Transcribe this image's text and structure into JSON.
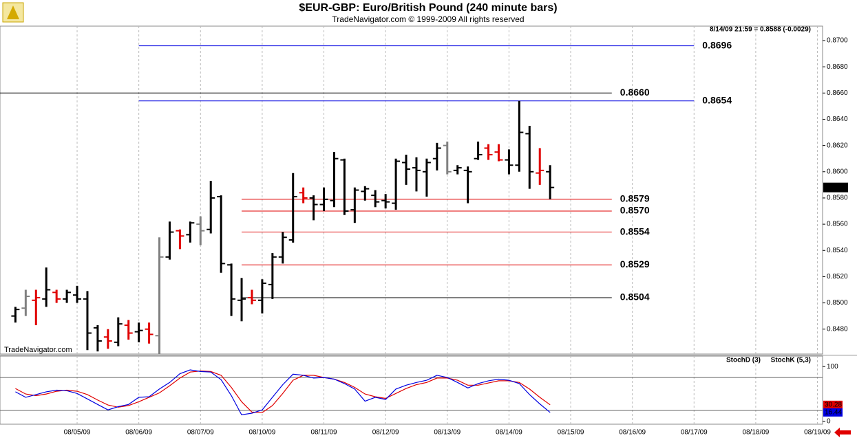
{
  "chart_data": [
    {
      "type": "ohlc",
      "title": "$EUR-GBP:  Euro/British Pound  (240 minute bars)",
      "subtitle": "TradeNavigator.com © 1999-2009 All rights reserved",
      "caption": "8/14/09 21:59 = 0.8588 (-0.0029)",
      "watermark": "TradeNavigator.com",
      "categories": [
        null,
        null,
        null,
        null,
        null,
        null,
        null,
        null,
        null,
        null,
        null,
        null,
        null,
        null,
        null,
        null,
        null,
        null,
        null,
        null,
        null,
        null,
        null,
        null,
        null,
        null,
        null,
        null,
        null,
        null,
        null,
        null,
        null,
        null,
        null,
        null,
        null,
        null,
        null,
        null,
        null,
        null,
        null,
        null,
        null,
        null,
        null,
        null,
        null,
        null,
        null,
        null,
        null
      ],
      "open": [
        0.849,
        0.8496,
        0.8502,
        0.8503,
        0.8508,
        0.8503,
        0.8506,
        0.8503,
        0.8481,
        0.8474,
        0.847,
        0.8483,
        0.8478,
        0.848,
        0.8475,
        0.8535,
        0.8555,
        0.8552,
        0.856,
        0.8556,
        0.8581,
        0.8529,
        0.8502,
        0.8504,
        0.8502,
        0.8514,
        0.8535,
        0.8548,
        0.8584,
        0.858,
        0.8575,
        0.8578,
        0.8609,
        0.8571,
        0.8585,
        0.8582,
        0.8578,
        0.8576,
        0.8607,
        0.8603,
        0.86,
        0.861,
        0.862,
        0.8601,
        0.8601,
        0.861,
        0.8618,
        0.8615,
        0.8609,
        0.8605,
        0.8629,
        0.8599,
        0.86
      ],
      "high": [
        0.8497,
        0.851,
        0.851,
        0.8527,
        0.851,
        0.851,
        0.8513,
        0.8509,
        0.8483,
        0.848,
        0.8489,
        0.8487,
        0.8485,
        0.8485,
        0.855,
        0.8562,
        0.8556,
        0.8562,
        0.8566,
        0.8593,
        0.8582,
        0.853,
        0.8519,
        0.851,
        0.8518,
        0.8538,
        0.8554,
        0.8599,
        0.8588,
        0.8582,
        0.8588,
        0.8615,
        0.861,
        0.8588,
        0.8589,
        0.8586,
        0.8583,
        0.861,
        0.8613,
        0.8611,
        0.861,
        0.8622,
        0.8623,
        0.8605,
        0.8604,
        0.8623,
        0.8621,
        0.8621,
        0.8617,
        0.8654,
        0.8635,
        0.8618,
        0.8605
      ],
      "low": [
        0.8485,
        0.849,
        0.8483,
        0.8497,
        0.85,
        0.85,
        0.85,
        0.8464,
        0.8463,
        0.8465,
        0.8467,
        0.8472,
        0.847,
        0.8469,
        0.8455,
        0.8533,
        0.8541,
        0.8546,
        0.8544,
        0.8553,
        0.8523,
        0.849,
        0.8486,
        0.8499,
        0.8492,
        0.8503,
        0.853,
        0.8546,
        0.8576,
        0.8563,
        0.857,
        0.8573,
        0.8567,
        0.8561,
        0.8578,
        0.8573,
        0.8572,
        0.8571,
        0.859,
        0.8585,
        0.8581,
        0.8601,
        0.8598,
        0.8598,
        0.8576,
        0.8609,
        0.8609,
        0.8608,
        0.8598,
        0.86,
        0.8587,
        0.859,
        0.8579
      ],
      "close": [
        0.8495,
        0.8505,
        0.8504,
        0.851,
        0.8503,
        0.8508,
        0.8503,
        0.8477,
        0.8471,
        0.8471,
        0.8484,
        0.8477,
        0.8479,
        0.8476,
        0.8535,
        0.8554,
        0.8551,
        0.8561,
        0.8555,
        0.858,
        0.853,
        0.8503,
        0.8503,
        0.8502,
        0.8515,
        0.8535,
        0.855,
        0.8581,
        0.858,
        0.8575,
        0.8579,
        0.861,
        0.857,
        0.8586,
        0.8587,
        0.8577,
        0.8577,
        0.8608,
        0.8602,
        0.8601,
        0.8607,
        0.8618,
        0.86,
        0.8603,
        0.86,
        0.8613,
        0.8613,
        0.8609,
        0.8605,
        0.863,
        0.86,
        0.8601,
        0.8588
      ],
      "colors": [
        "#000000",
        "#808080",
        "#e00000",
        "#000000",
        "#e00000",
        "#000000",
        "#000000",
        "#000000",
        "#000000",
        "#e00000",
        "#000000",
        "#e00000",
        "#000000",
        "#e00000",
        "#808080",
        "#000000",
        "#e00000",
        "#000000",
        "#808080",
        "#000000",
        "#000000",
        "#000000",
        "#000000",
        "#e00000",
        "#000000",
        "#000000",
        "#000000",
        "#000000",
        "#e00000",
        "#000000",
        "#000000",
        "#000000",
        "#000000",
        "#000000",
        "#000000",
        "#000000",
        "#000000",
        "#000000",
        "#000000",
        "#000000",
        "#000000",
        "#000000",
        "#808080",
        "#000000",
        "#000000",
        "#000000",
        "#e00000",
        "#e00000",
        "#000000",
        "#000000",
        "#000000",
        "#e00000",
        "#000000"
      ],
      "xlim": [
        -1.5,
        78.5
      ],
      "ylim": [
        0.8461,
        0.8711
      ],
      "yticks": [
        {
          "value": 0.848,
          "label": "0.8480"
        },
        {
          "value": 0.85,
          "label": "0.8500"
        },
        {
          "value": 0.852,
          "label": "0.8520"
        },
        {
          "value": 0.854,
          "label": "0.8540"
        },
        {
          "value": 0.856,
          "label": "0.8560"
        },
        {
          "value": 0.858,
          "label": "0.8580"
        },
        {
          "value": 0.86,
          "label": "0.8600"
        },
        {
          "value": 0.862,
          "label": "0.8620"
        },
        {
          "value": 0.864,
          "label": "0.8640"
        },
        {
          "value": 0.866,
          "label": "0.8660"
        },
        {
          "value": 0.868,
          "label": "0.8680"
        },
        {
          "value": 0.87,
          "label": "0.8700"
        }
      ],
      "last_price": {
        "value": 0.8588,
        "label": "0.8588"
      },
      "lines": [
        {
          "value": 0.8696,
          "label": "0.8696",
          "color": "#0000e0",
          "start": 12,
          "end": 66
        },
        {
          "value": 0.866,
          "label": "0.8660",
          "color": "#000000",
          "start": -1.5,
          "end": 58
        },
        {
          "value": 0.8654,
          "label": "0.8654",
          "color": "#0000e0",
          "start": 12,
          "end": 66
        },
        {
          "value": 0.8579,
          "label": "0.8579",
          "color": "#e00000",
          "start": 22,
          "end": 58
        },
        {
          "value": 0.857,
          "label": "0.8570",
          "color": "#e00000",
          "start": 22,
          "end": 58
        },
        {
          "value": 0.8554,
          "label": "0.8554",
          "color": "#e00000",
          "start": 22,
          "end": 58
        },
        {
          "value": 0.8529,
          "label": "0.8529",
          "color": "#e00000",
          "start": 22,
          "end": 58
        },
        {
          "value": 0.8504,
          "label": "0.8504",
          "color": "#000000",
          "start": 22,
          "end": 58
        }
      ]
    },
    {
      "type": "line",
      "series": [
        {
          "name": "StochD (3)",
          "color": "#e00000",
          "values": [
            60,
            50,
            47,
            50,
            55,
            57,
            55,
            49,
            39,
            30,
            26,
            29,
            36,
            44,
            52,
            65,
            79,
            90,
            92,
            91,
            84,
            62,
            36,
            17,
            16,
            29,
            51,
            75,
            84,
            84,
            80,
            77,
            71,
            62,
            50,
            45,
            42,
            51,
            60,
            67,
            71,
            79,
            79,
            75,
            66,
            66,
            70,
            74,
            74,
            71,
            59,
            44,
            30.28
          ]
        },
        {
          "name": "StochK (5,3)",
          "color": "#0000e0",
          "values": [
            54,
            44,
            49,
            54,
            57,
            56,
            51,
            41,
            31,
            21,
            27,
            31,
            44,
            45,
            59,
            71,
            87,
            94,
            91,
            90,
            76,
            47,
            12,
            15,
            21,
            44,
            67,
            86,
            84,
            79,
            80,
            77,
            69,
            59,
            37,
            44,
            40,
            59,
            66,
            71,
            75,
            84,
            80,
            71,
            61,
            69,
            74,
            77,
            75,
            69,
            49,
            32,
            16.44
          ]
        }
      ],
      "xlim": [
        -1.5,
        78.5
      ],
      "xticks": [
        {
          "value": 6,
          "label": "08/05/09"
        },
        {
          "value": 12,
          "label": "08/06/09"
        },
        {
          "value": 18,
          "label": "08/07/09"
        },
        {
          "value": 24,
          "label": "08/10/09"
        },
        {
          "value": 30,
          "label": "08/11/09"
        },
        {
          "value": 36,
          "label": "08/12/09"
        },
        {
          "value": 42,
          "label": "08/13/09"
        },
        {
          "value": 48,
          "label": "08/14/09"
        },
        {
          "value": 54,
          "label": "08/15/09"
        },
        {
          "value": 60,
          "label": "08/16/09"
        },
        {
          "value": 66,
          "label": "08/17/09"
        },
        {
          "value": 72,
          "label": "08/18/09"
        },
        {
          "value": 78,
          "label": "08/19/09"
        }
      ],
      "ylim": [
        -5,
        119
      ],
      "yticks": [
        0,
        100
      ],
      "reference_lines": [
        20,
        80
      ]
    }
  ]
}
